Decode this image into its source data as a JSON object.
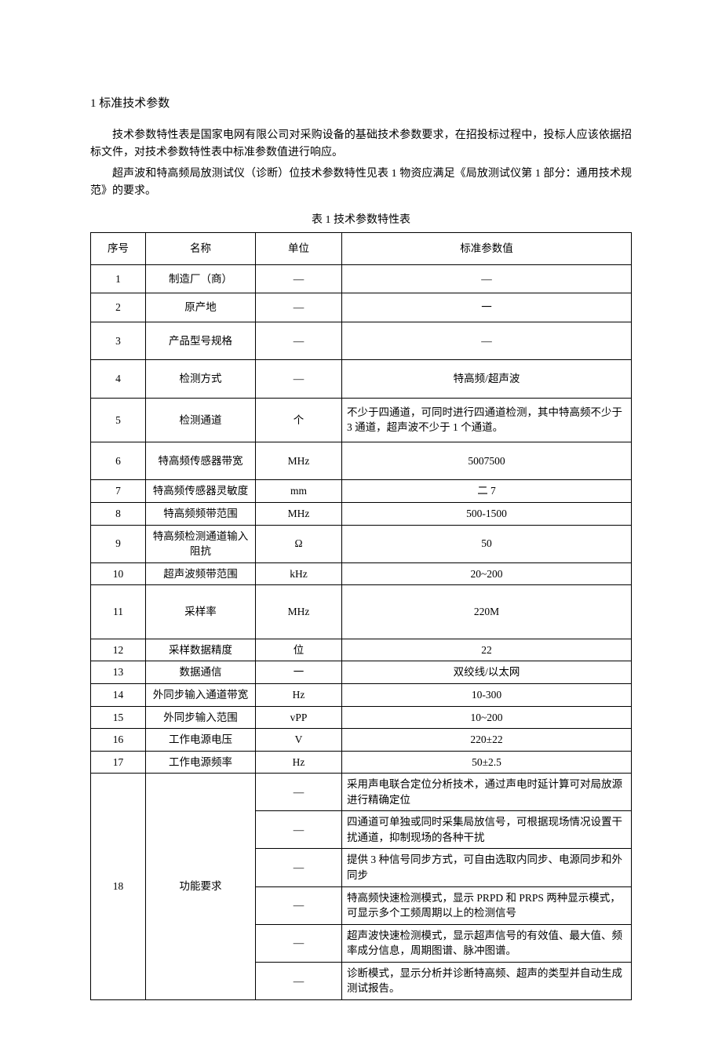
{
  "section_title": "1 标准技术参数",
  "para1": "技术参数特性表是国家电网有限公司对采购设备的基础技术参数要求，在招投标过程中，投标人应该依据招标文件，对技术参数特性表中标准参数值进行响应。",
  "para2": "超声波和特高频局放测试仪（诊断）位技术参数特性见表 1 物资应满足《局放测试仪第 1 部分：通用技术规范》的要求。",
  "table_caption": "表 1 技术参数特性表",
  "headers": {
    "seq": "序号",
    "name": "名称",
    "unit": "单位",
    "value": "标准参数值"
  },
  "rows": [
    {
      "seq": "1",
      "name": "制造厂（商）",
      "unit": "—",
      "value": "—",
      "align": "center",
      "h": "med"
    },
    {
      "seq": "2",
      "name": "原产地",
      "unit": "—",
      "value": "一",
      "align": "center",
      "h": "med"
    },
    {
      "seq": "3",
      "name": "产品型号规格",
      "unit": "—",
      "value": "—",
      "align": "center",
      "h": "tall"
    },
    {
      "seq": "4",
      "name": "检测方式",
      "unit": "—",
      "value": "特高频/超声波",
      "align": "center",
      "h": "tall"
    },
    {
      "seq": "5",
      "name": "检测通道",
      "unit": "个",
      "value": "不少于四通道，可同时进行四通道检测，其中特高频不少于 3 通道，超声波不少于 1 个通道。",
      "align": "left",
      "h": "med"
    },
    {
      "seq": "6",
      "name": "特高频传感器带宽",
      "unit": "MHz",
      "value": "5007500",
      "align": "center",
      "h": "tall"
    },
    {
      "seq": "7",
      "name": "特高频传感器灵敏度",
      "unit": "mm",
      "value": "二 7",
      "align": "center",
      "h": ""
    },
    {
      "seq": "8",
      "name": "特高频频带范围",
      "unit": "MHz",
      "value": "500-1500",
      "align": "center",
      "h": ""
    },
    {
      "seq": "9",
      "name": "特高频检测通道输入阻抗",
      "unit": "Ω",
      "value": "50",
      "align": "center",
      "h": ""
    },
    {
      "seq": "10",
      "name": "超声波频带范围",
      "unit": "kHz",
      "value": "20~200",
      "align": "center",
      "h": ""
    },
    {
      "seq": "11",
      "name": "采样率",
      "unit": "MHz",
      "value": "220M",
      "align": "center",
      "h": "big"
    },
    {
      "seq": "12",
      "name": "采样数据精度",
      "unit": "位",
      "value": "22",
      "align": "center",
      "h": ""
    },
    {
      "seq": "13",
      "name": "数据通信",
      "unit": "一",
      "value": "双绞线/以太网",
      "align": "center",
      "h": ""
    },
    {
      "seq": "14",
      "name": "外同步输入通道带宽",
      "unit": "Hz",
      "value": "10-300",
      "align": "center",
      "h": ""
    },
    {
      "seq": "15",
      "name": "外同步输入范围",
      "unit": "vPP",
      "value": "10~200",
      "align": "center",
      "h": ""
    },
    {
      "seq": "16",
      "name": "工作电源电压",
      "unit": "V",
      "value": "220±22",
      "align": "center",
      "h": ""
    },
    {
      "seq": "17",
      "name": "工作电源频率",
      "unit": "Hz",
      "value": "50±2.5",
      "align": "center",
      "h": ""
    }
  ],
  "func_row": {
    "seq": "18",
    "name": "功能要求",
    "unit": "—",
    "items": [
      "采用声电联合定位分析技术，通过声电时延计算可对局放源进行精确定位",
      "四通道可单独或同时采集局放信号，可根据现场情况设置干扰通道，抑制现场的各种干扰",
      "提供 3 种信号同步方式，可自由选取内同步、电源同步和外同步",
      "特高频快速检测模式，显示 PRPD 和 PRPS 两种显示模式，可显示多个工频周期以上的检测信号",
      "超声波快速检测模式，显示超声信号的有效值、最大值、频率成分信息，周期图谱、脉冲图谱。",
      "诊断模式，显示分析并诊断特高频、超声的类型并自动生成测试报告。"
    ]
  }
}
